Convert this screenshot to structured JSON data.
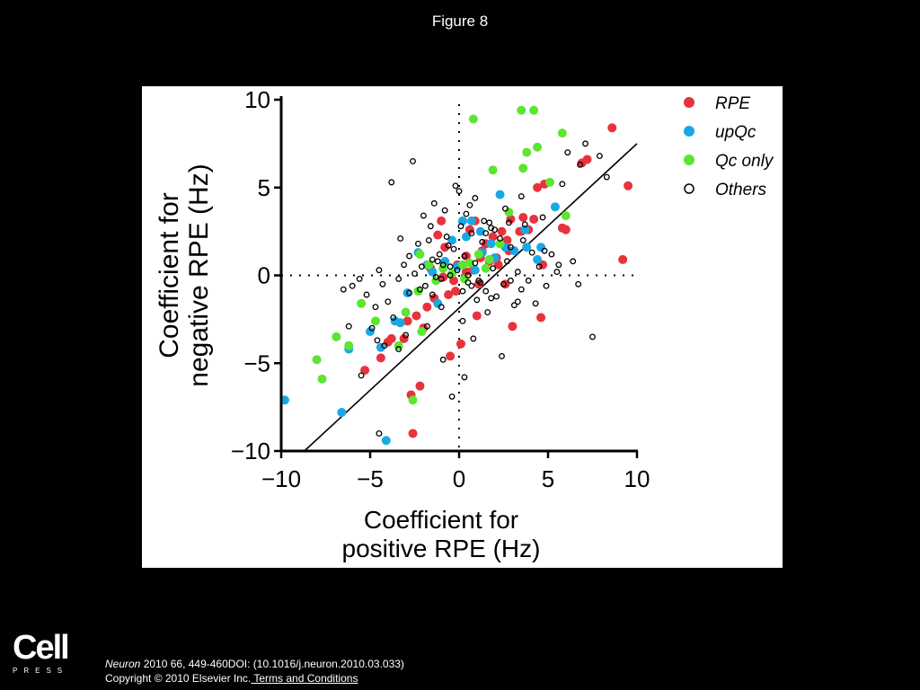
{
  "slide": {
    "title": "Figure 8"
  },
  "footer": {
    "logo_text": "Cell",
    "logo_subtext": "PRESS",
    "journal": "Neuron",
    "citation_rest": " 2010 66, 449-460DOI: (10.1016/j.neuron.2010.03.033)",
    "copyright": "Copyright © 2010 Elsevier Inc.",
    "terms_link": " Terms and Conditions"
  },
  "colors": {
    "RPE": "#e8323c",
    "upQc": "#1aa8e4",
    "Qc only": "#5ce532",
    "Others": "#000000"
  },
  "chart_data": {
    "type": "scatter",
    "xlabel": [
      "Coefficient for",
      "positive RPE (Hz)"
    ],
    "ylabel": [
      "Coefficient for",
      "negative RPE (Hz)"
    ],
    "xlim": [
      -10,
      10
    ],
    "ylim": [
      -10,
      10
    ],
    "xticks": [
      -10,
      -5,
      0,
      5,
      10
    ],
    "yticks": [
      -10,
      -5,
      0,
      5,
      10
    ],
    "tick_labels": [
      "−10",
      "−5",
      "0",
      "5",
      "10"
    ],
    "grid": false,
    "legend_position": "top-right",
    "reference_lines": [
      "x = 0 (dotted)",
      "y = 0 (dotted)",
      "y = x (solid)"
    ],
    "series": [
      {
        "name": "RPE",
        "marker": "filled",
        "x": [
          8.6,
          7.2,
          9.5,
          6.9,
          4.8,
          4.4,
          3.6,
          2.9,
          2.4,
          1.9,
          1.5,
          0.9,
          0.6,
          -1.0,
          -1.2,
          -0.8,
          0.4,
          1.3,
          2.1,
          3.4,
          3.9,
          2.6,
          1.1,
          -0.2,
          -0.6,
          -1.4,
          -1.8,
          -2.4,
          -3.1,
          -3.8,
          -4.4,
          -5.3,
          -2.7,
          -2.6,
          -2.2,
          0.1,
          3.0,
          4.6,
          5.8,
          6.0,
          2.8,
          1.7,
          0.4,
          -0.3,
          -1.6,
          -0.9,
          -0.1,
          0.8,
          1.2,
          2.2,
          2.7,
          3.5,
          4.2,
          -2.0,
          -4.0,
          -2.9,
          -0.5,
          1.0,
          9.2,
          4.7
        ],
        "y": [
          8.4,
          6.6,
          5.1,
          6.4,
          5.2,
          5.0,
          3.3,
          3.2,
          2.5,
          2.2,
          1.8,
          3.1,
          2.6,
          3.1,
          2.3,
          1.6,
          1.1,
          1.4,
          1.0,
          2.5,
          2.6,
          -0.5,
          -0.5,
          -0.9,
          -1.1,
          -1.3,
          -1.8,
          -2.3,
          -3.6,
          -3.6,
          -4.7,
          -5.4,
          -6.8,
          -9.0,
          -6.3,
          -3.9,
          -2.9,
          -2.4,
          2.7,
          2.6,
          1.4,
          0.8,
          0.2,
          -0.3,
          0.4,
          -0.1,
          0.6,
          0.3,
          1.0,
          0.6,
          2.0,
          2.5,
          3.2,
          -3.0,
          -3.8,
          -2.6,
          -4.6,
          -2.3,
          0.9,
          0.6
        ]
      },
      {
        "name": "upQc",
        "marker": "filled",
        "x": [
          -9.8,
          -6.6,
          -6.2,
          -5.0,
          -4.4,
          -4.1,
          -3.6,
          -2.3,
          -1.8,
          -1.2,
          -0.4,
          0.2,
          0.7,
          1.2,
          1.8,
          2.6,
          3.1,
          3.7,
          4.4,
          5.4,
          2.0,
          0.9,
          -0.8,
          -1.5,
          1.3,
          2.3,
          4.6,
          3.8,
          -2.9,
          -0.1,
          0.4,
          -3.3
        ],
        "y": [
          -7.1,
          -7.8,
          -4.2,
          -3.2,
          -4.1,
          -9.4,
          -2.6,
          1.3,
          0.6,
          -1.6,
          2.0,
          3.1,
          3.1,
          2.5,
          1.8,
          1.6,
          1.4,
          2.6,
          0.9,
          3.9,
          1.0,
          0.3,
          0.8,
          0.2,
          1.3,
          4.6,
          1.6,
          1.6,
          -1.0,
          0.5,
          2.2,
          -2.7
        ]
      },
      {
        "name": "Qc only",
        "marker": "filled",
        "x": [
          -8.0,
          -7.7,
          -6.9,
          -6.2,
          -5.5,
          -4.7,
          -3.4,
          -3.0,
          -2.6,
          -2.2,
          -1.7,
          -1.3,
          -0.9,
          -0.4,
          0.2,
          0.6,
          1.1,
          1.7,
          2.3,
          2.8,
          3.5,
          3.6,
          3.8,
          4.2,
          4.4,
          5.1,
          5.8,
          6.0,
          -2.3,
          0.8,
          1.9,
          -2.1,
          0.3,
          1.5
        ],
        "y": [
          -4.8,
          -5.9,
          -3.5,
          -4.0,
          -1.6,
          -2.6,
          -4.0,
          -2.1,
          -7.1,
          1.2,
          0.6,
          -0.3,
          0.4,
          0.1,
          0.6,
          0.7,
          1.2,
          0.9,
          1.8,
          3.6,
          9.4,
          6.1,
          7.0,
          9.4,
          7.3,
          5.3,
          8.1,
          3.4,
          -0.9,
          8.9,
          6.0,
          -3.2,
          -0.2,
          0.4
        ],
        "color_key": "Qc only"
      },
      {
        "name": "Others",
        "marker": "open",
        "x": [
          -6.5,
          -6.0,
          -5.6,
          -5.2,
          -4.9,
          -4.7,
          -4.5,
          -4.3,
          -4.0,
          -3.7,
          -3.4,
          -3.1,
          -2.8,
          -2.5,
          -2.3,
          -2.1,
          -1.9,
          -1.7,
          -1.5,
          -1.3,
          -1.1,
          -0.9,
          -0.7,
          -0.5,
          -0.3,
          -0.1,
          0.1,
          0.3,
          0.5,
          0.7,
          0.9,
          1.1,
          1.3,
          1.5,
          1.7,
          1.9,
          2.1,
          2.3,
          2.5,
          2.7,
          2.9,
          3.1,
          3.3,
          3.5,
          3.7,
          3.9,
          4.1,
          4.3,
          4.5,
          4.7,
          4.9,
          5.2,
          5.5,
          5.8,
          6.1,
          6.4,
          6.8,
          7.1,
          7.5,
          7.9,
          8.3,
          -3.3,
          -2.0,
          -1.4,
          -0.6,
          0.0,
          0.6,
          1.4,
          2.0,
          2.8,
          3.5,
          -3.8,
          -2.6,
          -1.6,
          -0.2,
          0.9,
          1.8,
          -5.5,
          -4.2,
          -3.0,
          -1.8,
          -0.9,
          0.3,
          1.6,
          3.3,
          -0.4,
          0.8,
          2.4,
          -6.2,
          -4.6,
          -3.4,
          -2.2,
          -1.0,
          0.2,
          1.0,
          -0.8,
          0.4,
          1.5,
          2.6,
          3.6,
          4.8,
          5.6,
          6.7,
          -2.8,
          -1.2,
          -0.5,
          0.5,
          1.2,
          -1.0,
          0.7,
          -1.5,
          0.2,
          1.8,
          -4.5,
          2.9
        ],
        "y": [
          -0.8,
          -0.6,
          -0.2,
          -1.1,
          -3.0,
          -1.8,
          0.3,
          -0.5,
          -1.5,
          -2.4,
          -0.2,
          0.6,
          -1.0,
          0.1,
          1.8,
          0.5,
          -0.6,
          2.0,
          0.9,
          -0.1,
          1.2,
          0.6,
          2.2,
          0.0,
          1.5,
          0.3,
          2.8,
          1.1,
          -0.4,
          2.4,
          0.7,
          -0.3,
          1.9,
          -0.9,
          3.0,
          0.4,
          -1.2,
          2.1,
          -0.5,
          0.8,
          1.6,
          -1.7,
          0.2,
          -0.8,
          2.9,
          -0.3,
          1.3,
          -1.6,
          0.5,
          3.3,
          -0.6,
          1.2,
          0.2,
          5.2,
          7.0,
          0.8,
          6.3,
          7.5,
          -3.5,
          6.8,
          5.6,
          2.1,
          3.4,
          4.1,
          1.7,
          4.8,
          4.0,
          3.1,
          2.6,
          3.0,
          4.5,
          5.3,
          6.5,
          2.8,
          5.1,
          4.4,
          2.7,
          -5.7,
          -4.0,
          -3.4,
          -2.9,
          -4.8,
          -5.8,
          -2.1,
          -1.5,
          -6.9,
          -3.6,
          -4.6,
          -2.9,
          -3.7,
          -4.2,
          -0.8,
          -1.8,
          -2.6,
          -1.4,
          3.7,
          3.5,
          2.4,
          3.8,
          2.0,
          1.4,
          0.6,
          -0.5,
          1.1,
          0.8,
          0.5,
          0.0,
          -0.4,
          -0.2,
          -0.6,
          -1.1,
          -0.9,
          -1.3,
          -9.0,
          -0.3
        ]
      }
    ]
  }
}
